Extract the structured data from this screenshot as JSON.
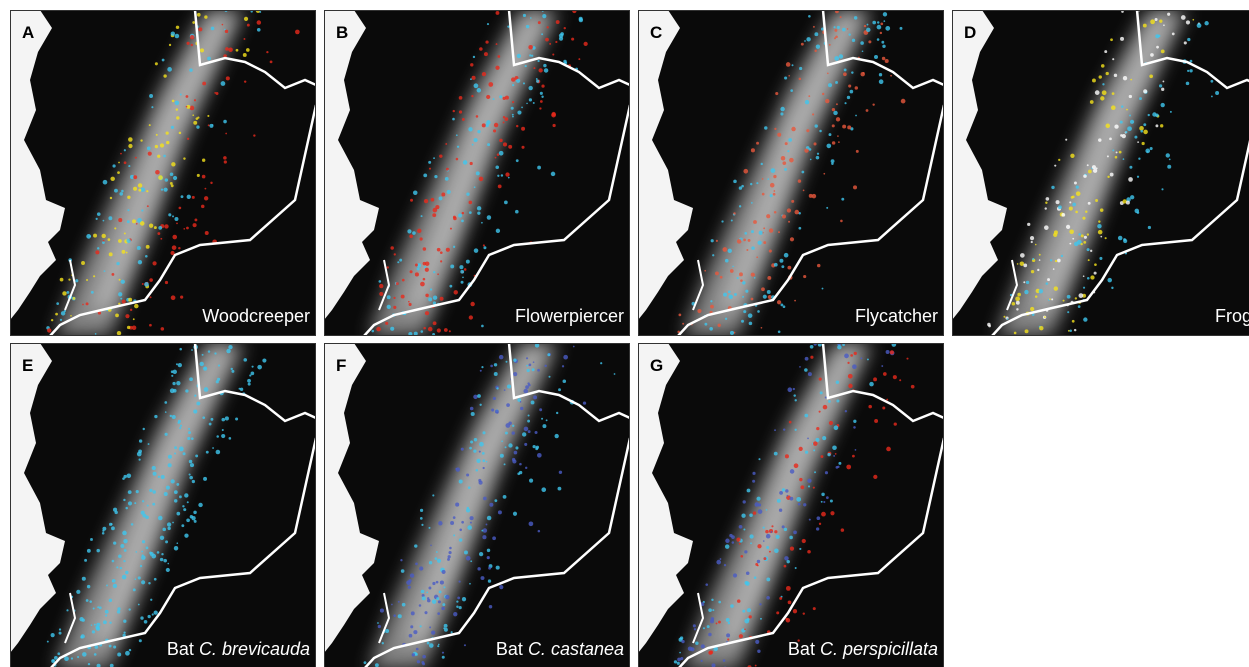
{
  "panels": [
    {
      "letter": "A",
      "caption": "Woodcreeper"
    },
    {
      "letter": "B",
      "caption": "Flowerpiercer"
    },
    {
      "letter": "C",
      "caption": "Flycatcher"
    },
    {
      "letter": "D",
      "caption": "Frog"
    },
    {
      "letter": "E",
      "caption": "Bat",
      "caption_italic": "C. brevicauda"
    },
    {
      "letter": "F",
      "caption": "Bat",
      "caption_italic": "C. castanea"
    },
    {
      "letter": "G",
      "caption": "Bat",
      "caption_italic": "C. perspicillata"
    }
  ]
}
